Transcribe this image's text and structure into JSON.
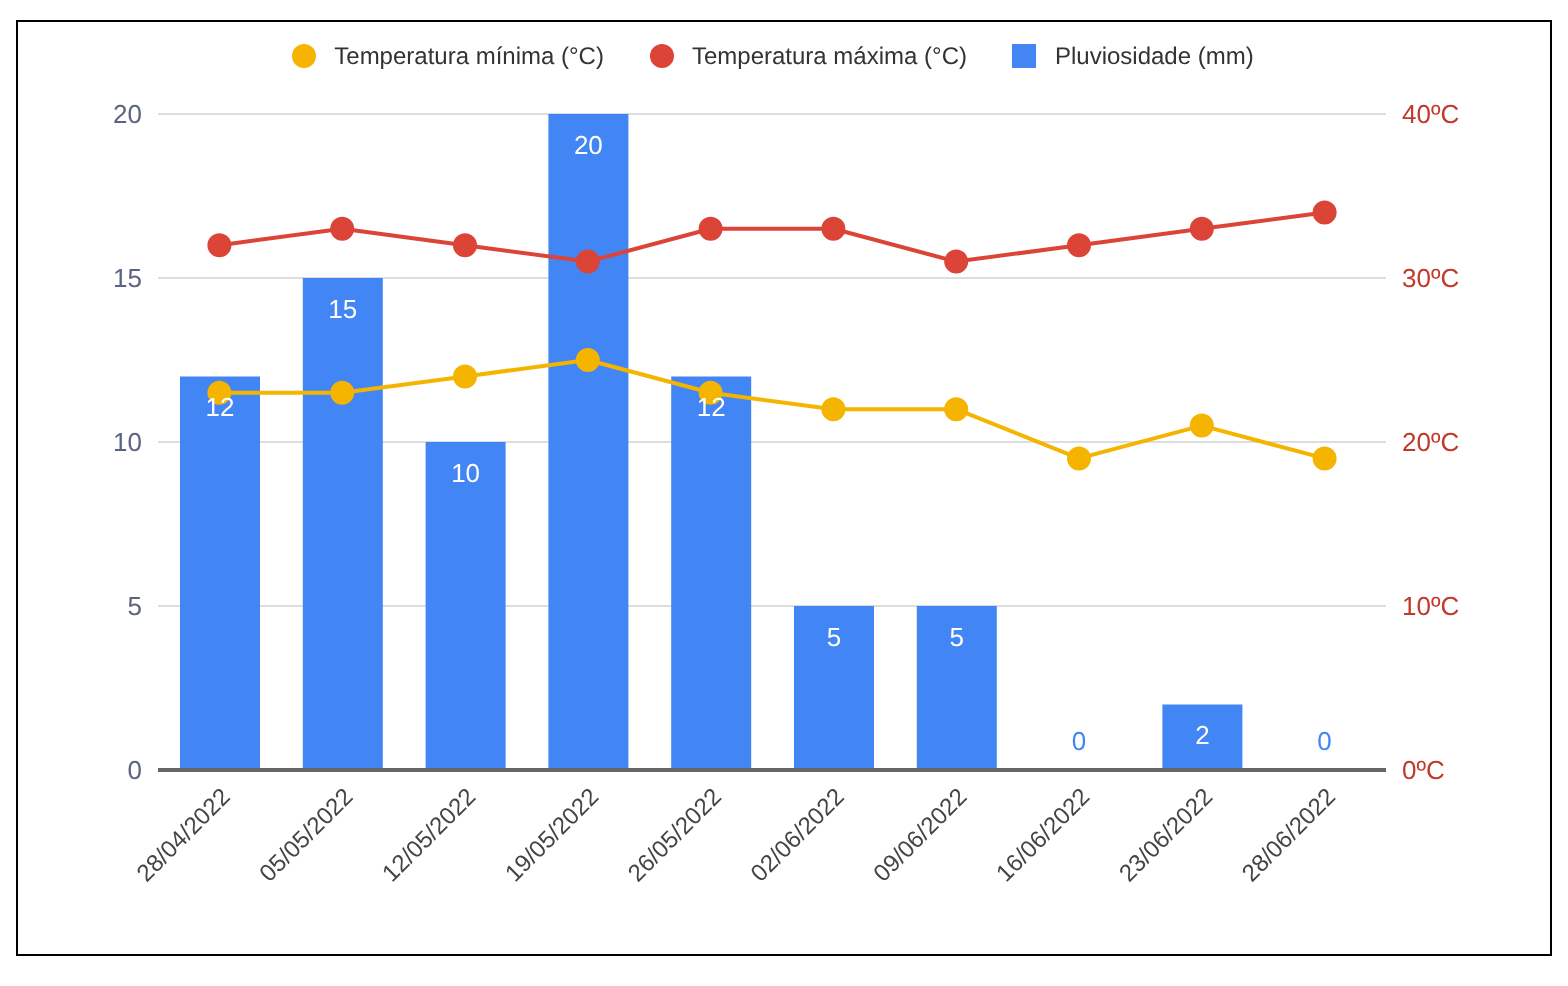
{
  "chart_data": {
    "type": "bar",
    "categories": [
      "28/04/2022",
      "05/05/2022",
      "12/05/2022",
      "19/05/2022",
      "26/05/2022",
      "02/06/2022",
      "09/06/2022",
      "16/06/2022",
      "23/06/2022",
      "28/06/2022"
    ],
    "series": [
      {
        "name": "Temperatura mínima (°C)",
        "type": "line",
        "axis": "y2",
        "color": "#f4b400",
        "values": [
          23,
          23,
          24,
          25,
          23,
          22,
          22,
          19,
          21,
          19
        ]
      },
      {
        "name": "Temperatura máxima (°C)",
        "type": "line",
        "axis": "y2",
        "color": "#db4437",
        "values": [
          32,
          33,
          32,
          31,
          33,
          33,
          31,
          32,
          33,
          34
        ]
      },
      {
        "name": "Pluviosidade (mm)",
        "color": "#4285f4",
        "values": [
          12,
          15,
          10,
          20,
          12,
          5,
          5,
          0,
          2,
          0
        ],
        "value_labels": [
          "12",
          "15",
          "10",
          "20",
          "12",
          "5",
          "5",
          "0",
          "2",
          "0"
        ]
      }
    ],
    "ylim": [
      0,
      20
    ],
    "yticks": [
      0,
      5,
      10,
      15,
      20
    ],
    "y2lim": [
      0,
      40
    ],
    "y2ticks": [
      {
        "value": 0,
        "label": "0ºC"
      },
      {
        "value": 10,
        "label": "10ºC"
      },
      {
        "value": 20,
        "label": "20ºC"
      },
      {
        "value": 30,
        "label": "30ºC"
      },
      {
        "value": 40,
        "label": "40ºC"
      }
    ],
    "grid": "y",
    "legend": "top",
    "marker": "circle"
  }
}
